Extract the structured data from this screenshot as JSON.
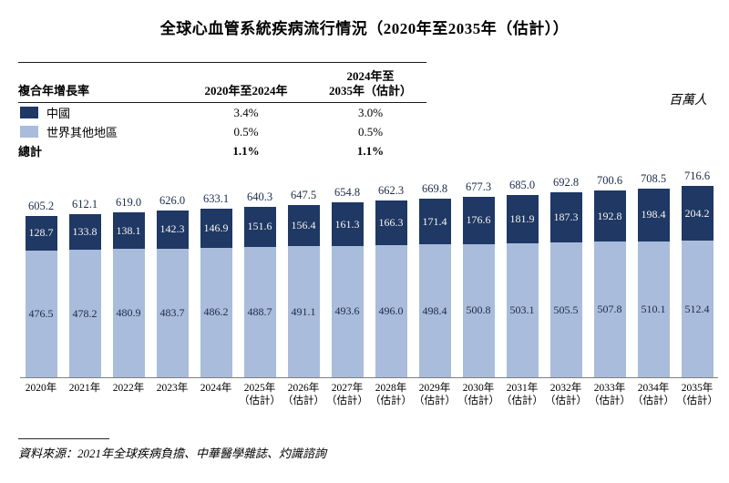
{
  "title": "全球心血管系統疾病流行情況（2020年至2035年（估計））",
  "unit_label": "百萬人",
  "cagr_table": {
    "corner_label": "複合年增長率",
    "col1_header": "2020年至2024年",
    "col2_header_line1": "2024年至",
    "col2_header_line2": "2035年（估計）",
    "rows": [
      {
        "label": "中國",
        "col1": "3.4%",
        "col2": "3.0%"
      },
      {
        "label": "世界其他地區",
        "col1": "0.5%",
        "col2": "0.5%"
      },
      {
        "label": "總計",
        "col1": "1.1%",
        "col2": "1.1%"
      }
    ]
  },
  "chart_data": {
    "type": "bar",
    "stacked": true,
    "title": "全球心血管系統疾病流行情況（2020年至2035年（估計））",
    "ylabel": "百萬人",
    "categories": [
      "2020年",
      "2021年",
      "2022年",
      "2023年",
      "2024年",
      "2025年",
      "2026年",
      "2027年",
      "2028年",
      "2029年",
      "2030年",
      "2031年",
      "2032年",
      "2033年",
      "2034年",
      "2035年"
    ],
    "estimate_label": "（估計）",
    "estimate_start_index": 5,
    "series": [
      {
        "name": "世界其他地區",
        "color": "#a9bcdb",
        "values": [
          476.5,
          478.2,
          480.9,
          483.7,
          486.2,
          488.7,
          491.1,
          493.6,
          496.0,
          498.4,
          500.8,
          503.1,
          505.5,
          507.8,
          510.1,
          512.4
        ]
      },
      {
        "name": "中國",
        "color": "#1f3864",
        "values": [
          128.7,
          133.8,
          138.1,
          142.3,
          146.9,
          151.6,
          156.4,
          161.3,
          166.3,
          171.4,
          176.6,
          181.9,
          187.3,
          192.8,
          198.4,
          204.2
        ]
      }
    ],
    "totals": [
      605.2,
      612.1,
      619.0,
      626.0,
      633.1,
      640.3,
      647.5,
      654.8,
      662.3,
      669.8,
      677.3,
      685.0,
      692.8,
      700.6,
      708.5,
      716.6
    ],
    "ylim": [
      0,
      760
    ],
    "grid": false,
    "legend_position": "top-left-table"
  },
  "source": "資料來源：2021年全球疾病負擔、中華醫學雜誌、灼識諮詢",
  "colors": {
    "china": "#1f3864",
    "world": "#a9bcdb",
    "value_label": "#1c2b49",
    "in_bar_label": "#f4f4ef"
  }
}
